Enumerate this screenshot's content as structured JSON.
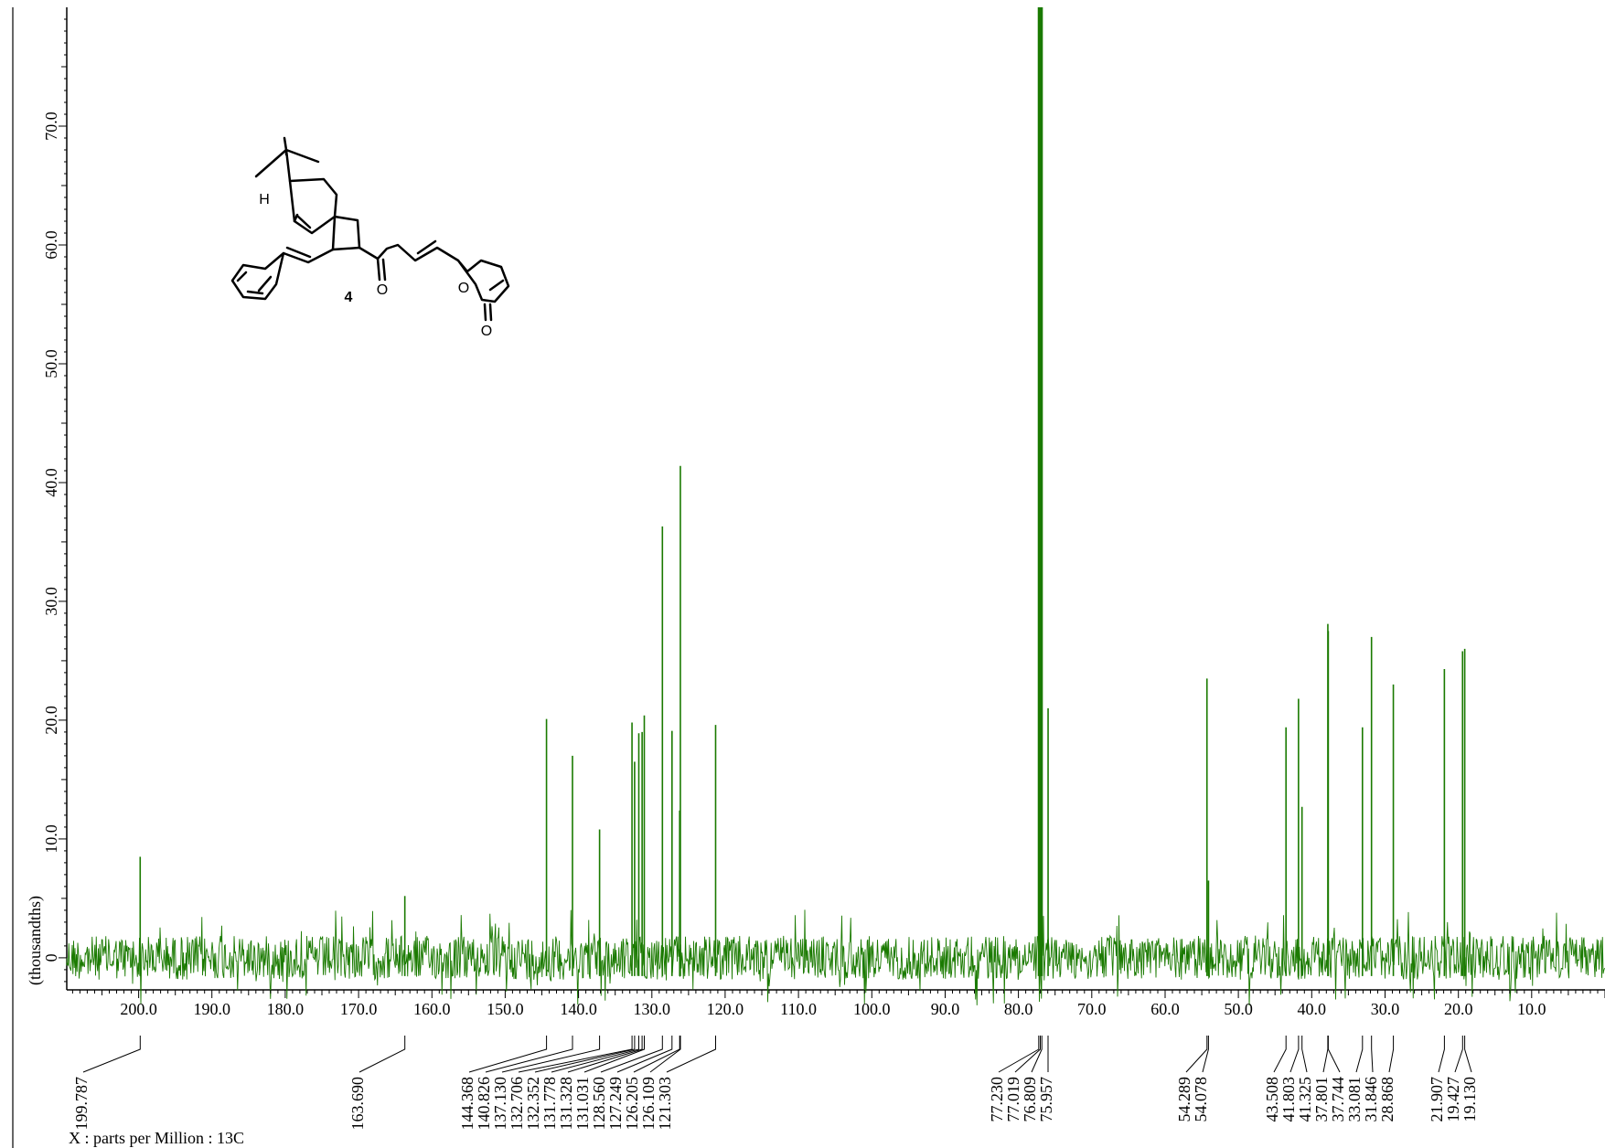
{
  "chart_data": {
    "type": "line",
    "title": "",
    "xlabel": "X : parts per Million : 13C",
    "ylabel": "(thousandths)",
    "x_reversed": true,
    "xlim": [
      209.8,
      0
    ],
    "ylim": [
      -2.7,
      80
    ],
    "x_ticks": [
      200,
      190,
      180,
      170,
      160,
      150,
      140,
      130,
      120,
      110,
      100,
      90,
      80,
      70,
      60,
      50,
      40,
      30,
      20,
      10
    ],
    "x_tick_labels": [
      "200.0",
      "190.0",
      "180.0",
      "170.0",
      "160.0",
      "150.0",
      "140.0",
      "130.0",
      "120.0",
      "110.0",
      "100.0",
      "90.0",
      "80.0",
      "70.0",
      "60.0",
      "50.0",
      "40.0",
      "30.0",
      "20.0",
      "10.0"
    ],
    "y_ticks": [
      0,
      10,
      20,
      30,
      40,
      50,
      60,
      70
    ],
    "y_tick_labels": [
      "0",
      "10.0",
      "20.0",
      "30.0",
      "40.0",
      "50.0",
      "60.0",
      "70.0"
    ],
    "line_color": "#1a7a00",
    "series": [
      {
        "peaks": [
          {
            "ppm": 199.787,
            "height": 8.5
          },
          {
            "ppm": 163.69,
            "height": 5.2
          },
          {
            "ppm": 144.368,
            "height": 20.1
          },
          {
            "ppm": 140.826,
            "height": 17.0
          },
          {
            "ppm": 137.13,
            "height": 10.8
          },
          {
            "ppm": 132.706,
            "height": 19.8
          },
          {
            "ppm": 132.352,
            "height": 16.5
          },
          {
            "ppm": 131.778,
            "height": 18.9
          },
          {
            "ppm": 131.328,
            "height": 19.0
          },
          {
            "ppm": 131.031,
            "height": 20.4
          },
          {
            "ppm": 128.56,
            "height": 36.3
          },
          {
            "ppm": 127.249,
            "height": 19.1
          },
          {
            "ppm": 126.205,
            "height": 12.4
          },
          {
            "ppm": 126.109,
            "height": 41.4
          },
          {
            "ppm": 121.303,
            "height": 19.6
          },
          {
            "ppm": 77.23,
            "height": 80.0
          },
          {
            "ppm": 77.019,
            "height": 80.0
          },
          {
            "ppm": 76.809,
            "height": 80.0
          },
          {
            "ppm": 75.957,
            "height": 21.0
          },
          {
            "ppm": 54.289,
            "height": 23.5
          },
          {
            "ppm": 54.078,
            "height": 6.5
          },
          {
            "ppm": 43.508,
            "height": 19.4
          },
          {
            "ppm": 41.803,
            "height": 21.8
          },
          {
            "ppm": 41.325,
            "height": 12.7
          },
          {
            "ppm": 37.801,
            "height": 28.1
          },
          {
            "ppm": 37.744,
            "height": 27.5
          },
          {
            "ppm": 33.081,
            "height": 19.4
          },
          {
            "ppm": 31.846,
            "height": 27.0
          },
          {
            "ppm": 28.868,
            "height": 23.0
          },
          {
            "ppm": 21.907,
            "height": 24.3
          },
          {
            "ppm": 19.427,
            "height": 25.8
          },
          {
            "ppm": 19.13,
            "height": 26.0
          }
        ]
      }
    ],
    "peak_labels": [
      "199.787",
      "163.690",
      "144.368",
      "140.826",
      "137.130",
      "132.706",
      "132.352",
      "131.778",
      "131.328",
      "131.031",
      "128.560",
      "127.249",
      "126.205",
      "126.109",
      "121.303",
      "77.230",
      "77.019",
      "76.809",
      "75.957",
      "54.289",
      "54.078",
      "43.508",
      "41.803",
      "41.325",
      "37.801",
      "37.744",
      "33.081",
      "31.846",
      "28.868",
      "21.907",
      "19.427",
      "19.130"
    ]
  },
  "structure": {
    "compound_label": "4",
    "atom_labels": [
      "H",
      "O",
      "O",
      "O"
    ]
  }
}
